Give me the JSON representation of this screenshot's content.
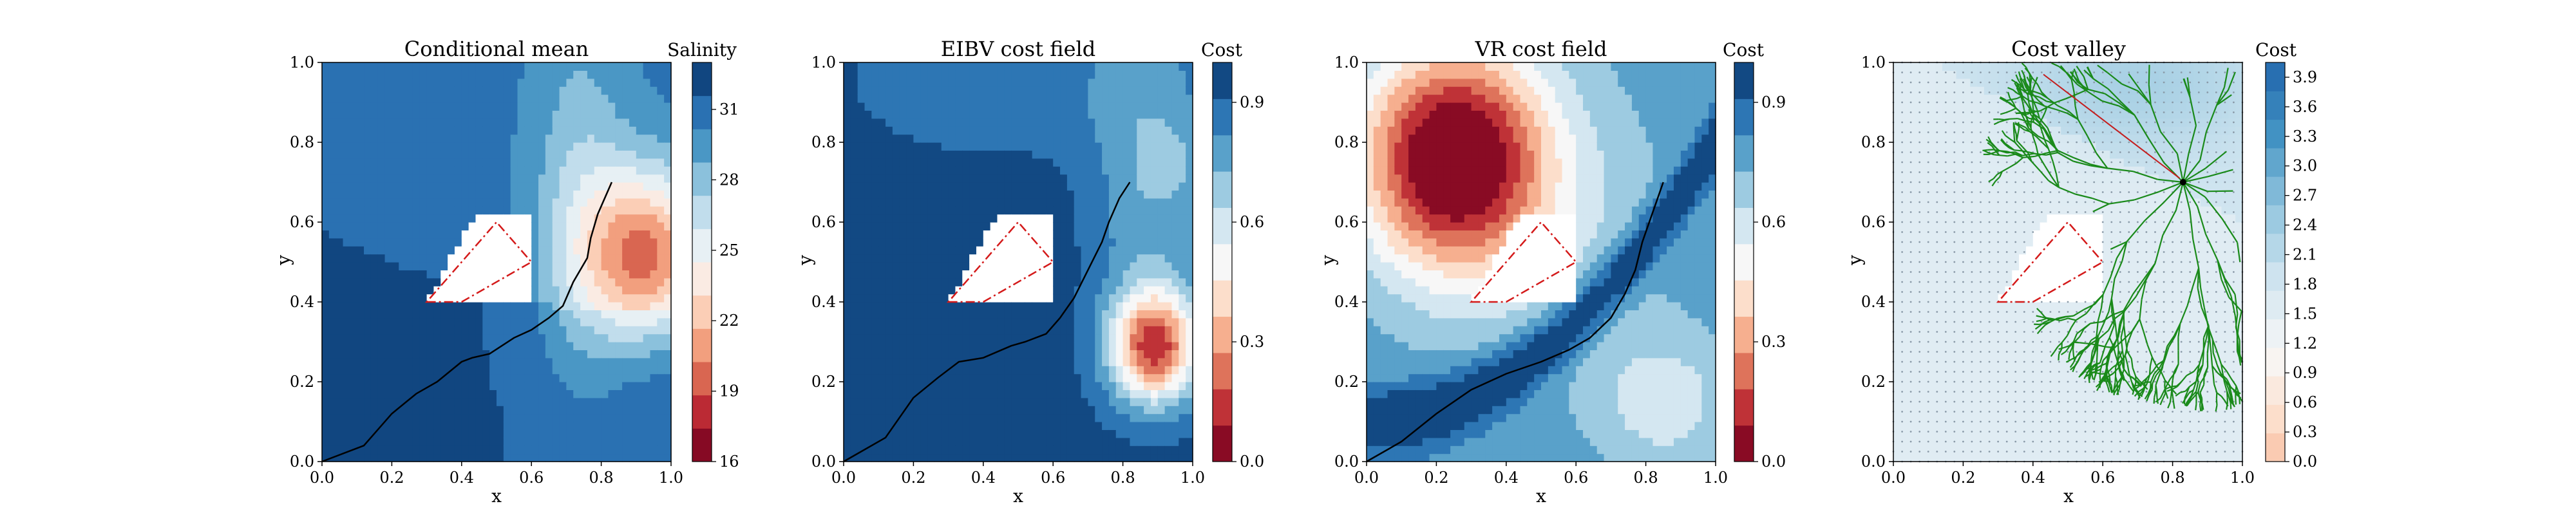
{
  "chart_data": [
    {
      "type": "heatmap",
      "title": "Conditional mean",
      "xlabel": "x",
      "ylabel": "y",
      "xlim": [
        0,
        1
      ],
      "ylim": [
        0,
        1
      ],
      "xticks": [
        "0.0",
        "0.2",
        "0.4",
        "0.6",
        "0.8",
        "1.0"
      ],
      "yticks": [
        "0.0",
        "0.2",
        "0.4",
        "0.6",
        "0.8",
        "1.0"
      ],
      "colorbar": {
        "label": "Salinity",
        "cmap": "RdBu",
        "range": [
          16,
          33
        ],
        "ticks": [
          16,
          19,
          22,
          25,
          28,
          31
        ],
        "levels": 12
      },
      "features": {
        "obstacle_polygon": [
          [
            0.3,
            0.4
          ],
          [
            0.4,
            0.4
          ],
          [
            0.6,
            0.5
          ],
          [
            0.5,
            0.6
          ]
        ],
        "path": [
          [
            0.0,
            0.0
          ],
          [
            0.12,
            0.04
          ],
          [
            0.2,
            0.12
          ],
          [
            0.27,
            0.17
          ],
          [
            0.33,
            0.2
          ],
          [
            0.4,
            0.25
          ],
          [
            0.43,
            0.26
          ],
          [
            0.48,
            0.27
          ],
          [
            0.55,
            0.31
          ],
          [
            0.6,
            0.33
          ],
          [
            0.65,
            0.36
          ],
          [
            0.69,
            0.39
          ],
          [
            0.72,
            0.45
          ],
          [
            0.76,
            0.51
          ],
          [
            0.77,
            0.56
          ],
          [
            0.79,
            0.62
          ],
          [
            0.83,
            0.7
          ]
        ]
      }
    },
    {
      "type": "heatmap",
      "title": "EIBV cost field",
      "xlabel": "x",
      "ylabel": "y",
      "xlim": [
        0,
        1
      ],
      "ylim": [
        0,
        1
      ],
      "xticks": [
        "0.0",
        "0.2",
        "0.4",
        "0.6",
        "0.8",
        "1.0"
      ],
      "yticks": [
        "0.0",
        "0.2",
        "0.4",
        "0.6",
        "0.8",
        "1.0"
      ],
      "colorbar": {
        "label": "Cost",
        "cmap": "RdBu",
        "range": [
          0,
          1
        ],
        "ticks": [
          "0.0",
          "0.3",
          "0.6",
          "0.9"
        ],
        "levels": 11
      },
      "features": {
        "obstacle_polygon": [
          [
            0.3,
            0.4
          ],
          [
            0.4,
            0.4
          ],
          [
            0.6,
            0.5
          ],
          [
            0.5,
            0.6
          ]
        ],
        "path": [
          [
            0.0,
            0.0
          ],
          [
            0.12,
            0.06
          ],
          [
            0.2,
            0.16
          ],
          [
            0.27,
            0.21
          ],
          [
            0.33,
            0.25
          ],
          [
            0.4,
            0.26
          ],
          [
            0.48,
            0.29
          ],
          [
            0.52,
            0.3
          ],
          [
            0.58,
            0.32
          ],
          [
            0.62,
            0.36
          ],
          [
            0.66,
            0.41
          ],
          [
            0.7,
            0.48
          ],
          [
            0.74,
            0.55
          ],
          [
            0.76,
            0.6
          ],
          [
            0.79,
            0.66
          ],
          [
            0.82,
            0.7
          ]
        ]
      }
    },
    {
      "type": "heatmap",
      "title": "VR cost field",
      "xlabel": "x",
      "ylabel": "y",
      "xlim": [
        0,
        1
      ],
      "ylim": [
        0,
        1
      ],
      "xticks": [
        "0.0",
        "0.2",
        "0.4",
        "0.6",
        "0.8",
        "1.0"
      ],
      "yticks": [
        "0.0",
        "0.2",
        "0.4",
        "0.6",
        "0.8",
        "1.0"
      ],
      "colorbar": {
        "label": "Cost",
        "cmap": "RdBu",
        "range": [
          0,
          1
        ],
        "ticks": [
          "0.0",
          "0.3",
          "0.6",
          "0.9"
        ],
        "levels": 11
      },
      "features": {
        "obstacle_polygon": [
          [
            0.3,
            0.4
          ],
          [
            0.4,
            0.4
          ],
          [
            0.6,
            0.5
          ],
          [
            0.5,
            0.6
          ]
        ],
        "path": [
          [
            0.0,
            0.0
          ],
          [
            0.1,
            0.05
          ],
          [
            0.2,
            0.12
          ],
          [
            0.3,
            0.18
          ],
          [
            0.4,
            0.22
          ],
          [
            0.5,
            0.25
          ],
          [
            0.58,
            0.28
          ],
          [
            0.64,
            0.31
          ],
          [
            0.7,
            0.36
          ],
          [
            0.74,
            0.42
          ],
          [
            0.77,
            0.48
          ],
          [
            0.79,
            0.55
          ],
          [
            0.81,
            0.6
          ],
          [
            0.83,
            0.65
          ],
          [
            0.85,
            0.7
          ]
        ]
      }
    },
    {
      "type": "heatmap",
      "title": "Cost valley",
      "xlabel": "x",
      "ylabel": "y",
      "xlim": [
        0,
        1
      ],
      "ylim": [
        0,
        1
      ],
      "xticks": [
        "0.0",
        "0.2",
        "0.4",
        "0.6",
        "0.8",
        "1.0"
      ],
      "yticks": [
        "0.0",
        "0.2",
        "0.4",
        "0.6",
        "0.8",
        "1.0"
      ],
      "colorbar": {
        "label": "Cost",
        "cmap": "RdBu",
        "range": [
          0,
          4.05
        ],
        "ticks": [
          "0.0",
          "0.3",
          "0.6",
          "0.9",
          "1.2",
          "1.5",
          "1.8",
          "2.1",
          "2.4",
          "2.7",
          "3.0",
          "3.3",
          "3.6",
          "3.9"
        ],
        "levels": 14
      },
      "features": {
        "obstacle_polygon": [
          [
            0.3,
            0.4
          ],
          [
            0.4,
            0.4
          ],
          [
            0.6,
            0.5
          ],
          [
            0.5,
            0.6
          ]
        ],
        "tree_root": [
          0.83,
          0.7
        ],
        "tree_color": "#1a8a1a",
        "grid_points": true
      }
    }
  ]
}
